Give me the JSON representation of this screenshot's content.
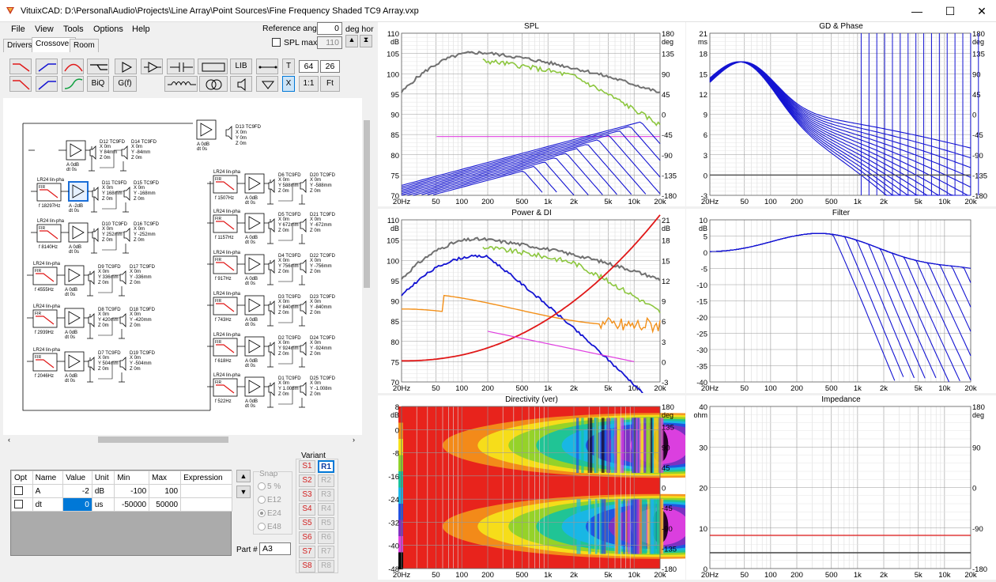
{
  "window": {
    "title": "VituixCAD: D:\\Personal\\Audio\\Projects\\Line Array\\Point Sources\\Fine Frequency Shaded TC9 Array.vxp",
    "min": "—",
    "max": "☐",
    "close": "✕"
  },
  "menu": [
    "File",
    "View",
    "Tools",
    "Options",
    "Help"
  ],
  "tabs": [
    "Drivers",
    "Crossover",
    "Room"
  ],
  "reference": {
    "label": "Reference angle",
    "value": "0",
    "unit": "deg hor",
    "spl_max_label": "SPL max",
    "spl_max_value": "110"
  },
  "toolbar": {
    "lib": "LIB",
    "t": "T",
    "t_val": "64",
    "t_val2": "26",
    "biq": "BiQ",
    "gf": "G(f)",
    "x": "X",
    "one_one": "1:1",
    "fit": "Ft"
  },
  "params": {
    "headers": [
      "Opt",
      "Name",
      "Value",
      "Unit",
      "Min",
      "Max",
      "Expression"
    ],
    "rows": [
      {
        "name": "A",
        "value": "-2",
        "unit": "dB",
        "min": "-100",
        "max": "100"
      },
      {
        "name": "dt",
        "value": "0",
        "unit": "us",
        "min": "-50000",
        "max": "50000"
      }
    ]
  },
  "snap": {
    "label": "Snap",
    "options": [
      "5 %",
      "E12",
      "E24",
      "E48"
    ]
  },
  "variant": {
    "label": "Variant",
    "s": [
      "S1",
      "S2",
      "S3",
      "S4",
      "S5",
      "S6",
      "S7",
      "S8"
    ],
    "r": [
      "R1",
      "R2",
      "R3",
      "R4",
      "R5",
      "R6",
      "R7",
      "R8"
    ]
  },
  "part": {
    "label": "Part #",
    "value": "A3"
  },
  "schematic": {
    "filter_label": "LR24 lin-pha",
    "fir": "FIR",
    "gain": "A  0dB",
    "dt": "dt  0s",
    "top": {
      "name": "D13 TC9FD",
      "pos": "X 0m\nY 0m\nZ 0m"
    },
    "left": [
      {
        "f": "",
        "n1": "D12 TC9FD",
        "p1": "X 0m\nY 84mm\nZ 0m",
        "n2": "D14 TC9FD",
        "p2": "X 0m\nY -84mm\nZ 0m",
        "g": "A  0dB"
      },
      {
        "f": "f  18297Hz",
        "n1": "D11 TC9FD",
        "p1": "X 0m\nY 168mm\nZ 0m",
        "n2": "D15 TC9FD",
        "p2": "X 0m\nY -168mm\nZ 0m",
        "g": "A  -2dB"
      },
      {
        "f": "f  8140Hz",
        "n1": "D10 TC9FD",
        "p1": "X 0m\nY 252mm\nZ 0m",
        "n2": "D16 TC9FD",
        "p2": "X 0m\nY -252mm\nZ 0m",
        "g": "A  0dB"
      },
      {
        "f": "f  4555Hz",
        "n1": "D9 TC9FD",
        "p1": "X 0m\nY 336mm\nZ 0m",
        "n2": "D17 TC9FD",
        "p2": "X 0m\nY -336mm\nZ 0m",
        "g": "A  0dB"
      },
      {
        "f": "f  2939Hz",
        "n1": "D8 TC9FD",
        "p1": "X 0m\nY 420mm\nZ 0m",
        "n2": "D18 TC9FD",
        "p2": "X 0m\nY -420mm\nZ 0m",
        "g": "A  0dB"
      },
      {
        "f": "f  2046Hz",
        "n1": "D7 TC9FD",
        "p1": "X 0m\nY 504mm\nZ 0m",
        "n2": "D19 TC9FD",
        "p2": "X 0m\nY -504mm\nZ 0m",
        "g": "A  0dB"
      }
    ],
    "right": [
      {
        "f": "f  1507Hz",
        "n1": "D6 TC9FD",
        "p1": "X 0m\nY 588mm\nZ 0m",
        "n2": "D20 TC9FD",
        "p2": "X 0m\nY -588mm\nZ 0m"
      },
      {
        "f": "f  1157Hz",
        "n1": "D5 TC9FD",
        "p1": "X 0m\nY 672mm\nZ 0m",
        "n2": "D21 TC9FD",
        "p2": "X 0m\nY -672mm\nZ 0m"
      },
      {
        "f": "f  917Hz",
        "n1": "D4 TC9FD",
        "p1": "X 0m\nY 756mm\nZ 0m",
        "n2": "D22 TC9FD",
        "p2": "X 0m\nY -756mm\nZ 0m"
      },
      {
        "f": "f  743Hz",
        "n1": "D3 TC9FD",
        "p1": "X 0m\nY 840mm\nZ 0m",
        "n2": "D23 TC9FD",
        "p2": "X 0m\nY -840mm\nZ 0m"
      },
      {
        "f": "f  618Hz",
        "n1": "D2 TC9FD",
        "p1": "X 0m\nY 924mm\nZ 0m",
        "n2": "D24 TC9FD",
        "p2": "X 0m\nY -924mm\nZ 0m"
      },
      {
        "f": "f  522Hz",
        "n1": "D1 TC9FD",
        "p1": "X 0m\nY 1.008m\nZ 0m",
        "n2": "D25 TC9FD",
        "p2": "X 0m\nY -1.008m\nZ 0m"
      }
    ]
  },
  "xticks": [
    "20Hz",
    "50",
    "100",
    "200",
    "500",
    "1k",
    "2k",
    "5k",
    "10k",
    "20k"
  ],
  "charts": [
    {
      "title": "SPL",
      "left_unit": "dB",
      "right_unit": "deg",
      "left": [
        "110",
        "105",
        "100",
        "95",
        "90",
        "85",
        "80",
        "75",
        "70"
      ],
      "right": [
        "180",
        "135",
        "90",
        "45",
        "0",
        "-45",
        "-90",
        "-135",
        "-180"
      ]
    },
    {
      "title": "GD & Phase",
      "left_unit": "ms",
      "right_unit": "deg",
      "left": [
        "21",
        "18",
        "15",
        "12",
        "9",
        "6",
        "3",
        "0",
        "-3"
      ],
      "right": [
        "180",
        "135",
        "90",
        "45",
        "0",
        "-45",
        "-90",
        "-135",
        "-180"
      ]
    },
    {
      "title": "Power & DI",
      "left_unit": "dB",
      "right_unit": "dB",
      "left": [
        "110",
        "105",
        "100",
        "95",
        "90",
        "85",
        "80",
        "75",
        "70"
      ],
      "right": [
        "21",
        "18",
        "15",
        "12",
        "9",
        "6",
        "3",
        "0",
        "-3"
      ]
    },
    {
      "title": "Filter",
      "left_unit": "dB",
      "right_unit": "",
      "left": [
        "10",
        "5",
        "0",
        "-5",
        "-10",
        "-15",
        "-20",
        "-25",
        "-30",
        "-35",
        "-40"
      ],
      "right": []
    },
    {
      "title": "Directivity (ver)",
      "left_unit": "dB",
      "right_unit": "deg",
      "left": [
        "8",
        "0",
        "-8",
        "-16",
        "-24",
        "-32",
        "-40",
        "-48"
      ],
      "right": [
        "180",
        "135",
        "90",
        "45",
        "0",
        "-45",
        "-90",
        "-135",
        "-180"
      ]
    },
    {
      "title": "Impedance",
      "left_unit": "ohm",
      "right_unit": "deg",
      "left": [
        "40",
        "30",
        "20",
        "10",
        "0"
      ],
      "right": [
        "180",
        "90",
        "0",
        "-90",
        "-180"
      ]
    }
  ],
  "colors": {
    "blue": "#1414d2",
    "gray": "#707070",
    "green": "#8cc63e",
    "magenta": "#e040e0",
    "red": "#e01818",
    "orange": "#f39019"
  }
}
